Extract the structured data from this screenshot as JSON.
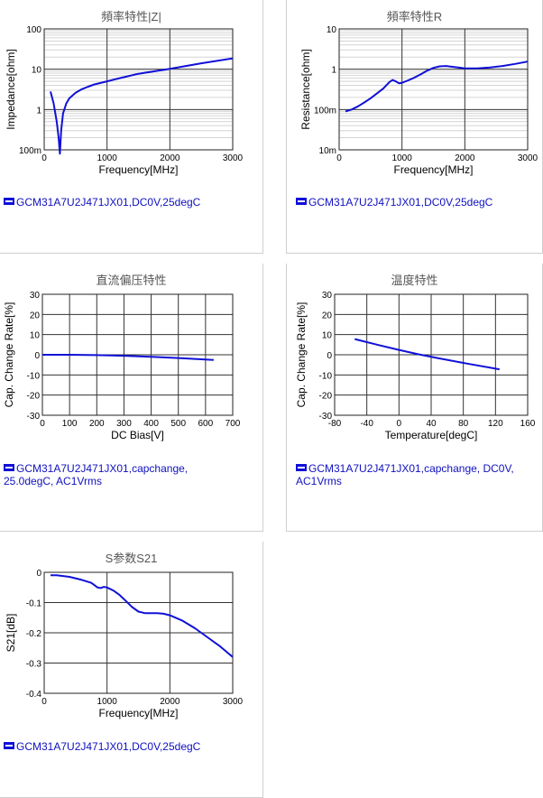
{
  "chart_data": [
    {
      "id": "impedance",
      "type": "line",
      "title": "頻率特性|Z|",
      "xlabel": "Frequency[MHz]",
      "ylabel": "Impedance[ohm]",
      "xlim": [
        0,
        3000
      ],
      "ylim": [
        0.1,
        100
      ],
      "yscale": "log",
      "xticks": [
        0,
        1000,
        2000,
        3000
      ],
      "xtick_labels": [
        "0",
        "1000",
        "2000",
        "3000"
      ],
      "yticks": [
        0.1,
        1,
        10,
        100
      ],
      "ytick_labels": [
        "100m",
        "1",
        "10",
        "100"
      ],
      "legend": "GCM31A7U2J471JX01,DC0V,25degC",
      "color": "#1010d8",
      "x": [
        100,
        150,
        200,
        230,
        250,
        270,
        300,
        350,
        400,
        500,
        600,
        700,
        800,
        1000,
        1200,
        1500,
        2000,
        2500,
        3000
      ],
      "y": [
        2.8,
        1.4,
        0.5,
        0.2,
        0.08,
        0.3,
        0.8,
        1.4,
        1.9,
        2.6,
        3.2,
        3.7,
        4.2,
        5.0,
        6.0,
        7.7,
        10.2,
        14.0,
        18.5
      ]
    },
    {
      "id": "resistance",
      "type": "line",
      "title": "頻率特性R",
      "xlabel": "Frequency[MHz]",
      "ylabel": "Resistance[ohm]",
      "xlim": [
        0,
        3000
      ],
      "ylim": [
        0.01,
        10
      ],
      "yscale": "log",
      "xticks": [
        0,
        1000,
        2000,
        3000
      ],
      "xtick_labels": [
        "0",
        "1000",
        "2000",
        "3000"
      ],
      "yticks": [
        0.01,
        0.1,
        1,
        10
      ],
      "ytick_labels": [
        "10m",
        "100m",
        "1",
        "10"
      ],
      "legend": "GCM31A7U2J471JX01,DC0V,25degC",
      "color": "#1010d8",
      "x": [
        100,
        200,
        300,
        400,
        500,
        600,
        700,
        800,
        850,
        900,
        950,
        1000,
        1100,
        1200,
        1300,
        1400,
        1500,
        1600,
        1700,
        1800,
        2000,
        2200,
        2400,
        2600,
        2800,
        3000
      ],
      "y": [
        0.09,
        0.1,
        0.12,
        0.15,
        0.19,
        0.25,
        0.33,
        0.48,
        0.54,
        0.5,
        0.45,
        0.46,
        0.53,
        0.62,
        0.75,
        0.92,
        1.08,
        1.18,
        1.2,
        1.15,
        1.05,
        1.05,
        1.1,
        1.2,
        1.35,
        1.55
      ]
    },
    {
      "id": "dcbias",
      "type": "line",
      "title": "直流偏压特性",
      "xlabel": "DC Bias[V]",
      "ylabel": "Cap. Change Rate[%]",
      "xlim": [
        0,
        700
      ],
      "ylim": [
        -30,
        30
      ],
      "yscale": "linear",
      "xticks": [
        0,
        100,
        200,
        300,
        400,
        500,
        600,
        700
      ],
      "xtick_labels": [
        "0",
        "100",
        "200",
        "300",
        "400",
        "500",
        "600",
        "700"
      ],
      "yticks": [
        -30,
        -20,
        -10,
        0,
        10,
        20,
        30
      ],
      "ytick_labels": [
        "-30",
        "-20",
        "-10",
        "0",
        "10",
        "20",
        "30"
      ],
      "legend": "GCM31A7U2J471JX01,capchange, 25.0degC, AC1Vrms",
      "color": "#1010d8",
      "x": [
        0,
        100,
        200,
        300,
        400,
        500,
        630
      ],
      "y": [
        0,
        0,
        -0.2,
        -0.5,
        -1.0,
        -1.6,
        -2.6
      ]
    },
    {
      "id": "temperature",
      "type": "line",
      "title": "温度特性",
      "xlabel": "Temperature[degC]",
      "ylabel": "Cap. Change Rate[%]",
      "xlim": [
        -80,
        160
      ],
      "ylim": [
        -30,
        30
      ],
      "yscale": "linear",
      "xticks": [
        -80,
        -40,
        0,
        40,
        80,
        120,
        160
      ],
      "xtick_labels": [
        "-80",
        "-40",
        "0",
        "40",
        "80",
        "120",
        "160"
      ],
      "yticks": [
        -30,
        -20,
        -10,
        0,
        10,
        20,
        30
      ],
      "ytick_labels": [
        "-30",
        "-20",
        "-10",
        "0",
        "10",
        "20",
        "30"
      ],
      "legend": "GCM31A7U2J471JX01,capchange, DC0V, AC1Vrms",
      "color": "#1010d8",
      "x": [
        -55,
        -25,
        0,
        25,
        50,
        85,
        125
      ],
      "y": [
        7.8,
        4.8,
        2.4,
        0.2,
        -1.8,
        -4.4,
        -7.2
      ]
    },
    {
      "id": "s21",
      "type": "line",
      "title": "S参数S21",
      "xlabel": "Frequency[MHz]",
      "ylabel": "S21[dB]",
      "xlim": [
        0,
        3000
      ],
      "ylim": [
        -0.4,
        0
      ],
      "yscale": "linear",
      "xticks": [
        0,
        1000,
        2000,
        3000
      ],
      "xtick_labels": [
        "0",
        "1000",
        "2000",
        "3000"
      ],
      "yticks": [
        0,
        -0.1,
        -0.2,
        -0.3,
        -0.4
      ],
      "ytick_labels": [
        "0",
        "-0.1",
        "-0.2",
        "-0.3",
        "-0.4"
      ],
      "legend": "GCM31A7U2J471JX01,DC0V,25degC",
      "color": "#1010d8",
      "x": [
        100,
        200,
        400,
        600,
        750,
        850,
        900,
        950,
        1000,
        1100,
        1200,
        1300,
        1400,
        1500,
        1600,
        1700,
        1800,
        1900,
        2000,
        2200,
        2400,
        2600,
        2800,
        3000
      ],
      "y": [
        -0.01,
        -0.01,
        -0.015,
        -0.025,
        -0.035,
        -0.05,
        -0.052,
        -0.048,
        -0.05,
        -0.06,
        -0.075,
        -0.095,
        -0.115,
        -0.13,
        -0.135,
        -0.135,
        -0.135,
        -0.137,
        -0.142,
        -0.16,
        -0.185,
        -0.215,
        -0.245,
        -0.28
      ]
    }
  ]
}
